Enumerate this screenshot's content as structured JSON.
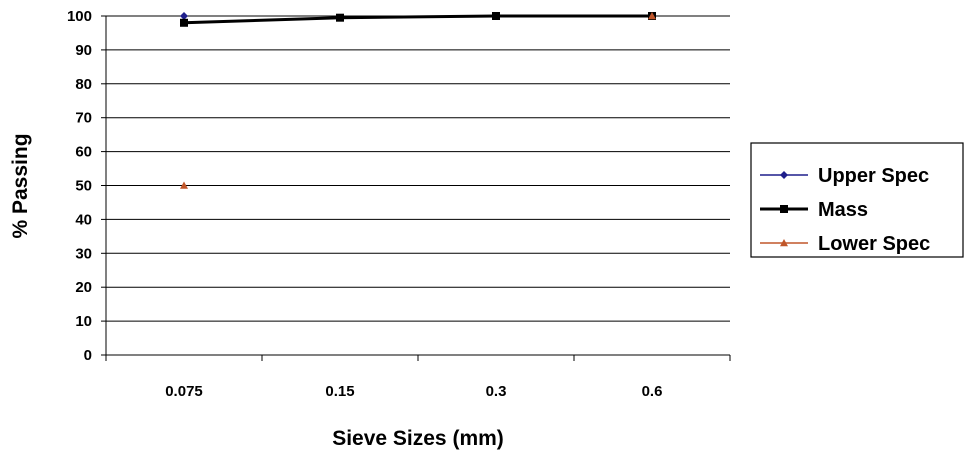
{
  "chart_data": {
    "type": "line",
    "categories": [
      "0.075",
      "0.15",
      "0.3",
      "0.6"
    ],
    "series": [
      {
        "name": "Upper Spec",
        "color": "#1f1f8c",
        "marker": "diamond",
        "values": [
          100,
          null,
          null,
          100
        ]
      },
      {
        "name": "Mass",
        "color": "#000000",
        "marker": "square",
        "values": [
          98,
          99.5,
          100,
          100
        ]
      },
      {
        "name": "Lower Spec",
        "color": "#c0562a",
        "marker": "triangle",
        "values": [
          50,
          null,
          null,
          100
        ]
      }
    ],
    "title": "",
    "xlabel": "Sieve Sizes (mm)",
    "ylabel": "% Passing",
    "ylim": [
      0,
      100
    ],
    "yticks": [
      0,
      10,
      20,
      30,
      40,
      50,
      60,
      70,
      80,
      90,
      100
    ],
    "grid": true,
    "legend_position": "right"
  }
}
